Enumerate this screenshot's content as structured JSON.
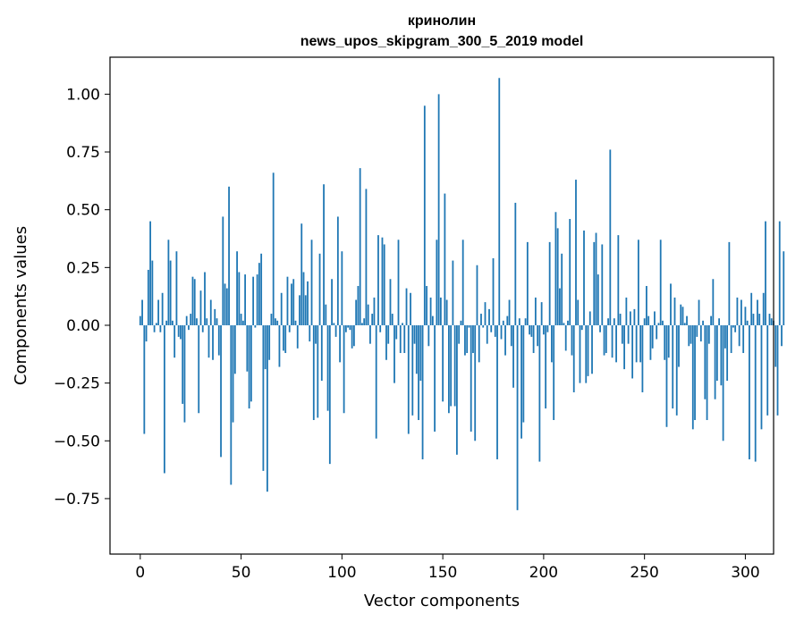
{
  "chart_data": {
    "type": "bar",
    "title": "кринолин",
    "subtitle": "news_upos_skipgram_300_5_2019 model",
    "xlabel": "Vector components",
    "ylabel": "Components values",
    "xlim": [
      -15,
      314
    ],
    "ylim": [
      -0.99,
      1.16
    ],
    "x_ticks": [
      0,
      50,
      100,
      150,
      200,
      250,
      300
    ],
    "x_tick_labels": [
      "0",
      "50",
      "100",
      "150",
      "200",
      "250",
      "300"
    ],
    "y_ticks": [
      1.0,
      0.75,
      0.5,
      0.25,
      0.0,
      -0.25,
      -0.5,
      -0.75
    ],
    "y_tick_labels": [
      "1.00",
      "0.75",
      "0.50",
      "0.25",
      "0.00",
      "−0.25",
      "−0.50",
      "−0.75"
    ],
    "bar_color": "#1f77b4",
    "grid": false,
    "values": [
      0.04,
      0.11,
      -0.47,
      -0.07,
      0.24,
      0.45,
      0.28,
      -0.03,
      0.01,
      0.11,
      -0.03,
      0.14,
      -0.64,
      0.02,
      0.37,
      0.28,
      0.02,
      -0.14,
      0.32,
      -0.05,
      -0.06,
      -0.34,
      -0.42,
      0.04,
      -0.02,
      0.05,
      0.21,
      0.2,
      0.03,
      -0.38,
      0.15,
      -0.03,
      0.23,
      0.03,
      -0.14,
      0.11,
      -0.15,
      0.07,
      0.03,
      -0.13,
      -0.57,
      0.47,
      0.18,
      0.16,
      0.6,
      -0.69,
      -0.42,
      -0.21,
      0.32,
      0.23,
      0.05,
      0.02,
      0.22,
      -0.2,
      -0.36,
      -0.33,
      0.21,
      -0.01,
      0.22,
      0.27,
      0.31,
      -0.63,
      -0.19,
      -0.72,
      -0.15,
      0.05,
      0.66,
      0.03,
      0.02,
      -0.18,
      0.14,
      -0.11,
      -0.12,
      0.21,
      -0.03,
      0.18,
      0.2,
      0.02,
      -0.1,
      0.13,
      0.44,
      0.23,
      0.13,
      0.19,
      -0.07,
      0.37,
      -0.41,
      -0.08,
      -0.4,
      0.31,
      -0.24,
      0.61,
      0.09,
      -0.37,
      -0.6,
      0.2,
      0.01,
      -0.05,
      0.47,
      -0.16,
      0.32,
      -0.38,
      -0.03,
      -0.01,
      -0.02,
      -0.1,
      -0.09,
      0.11,
      0.17,
      0.68,
      0.01,
      0.03,
      0.59,
      0.09,
      -0.08,
      0.05,
      0.12,
      -0.49,
      0.39,
      -0.03,
      0.38,
      0.35,
      -0.15,
      -0.08,
      0.2,
      0.05,
      -0.25,
      -0.06,
      0.37,
      -0.12,
      0.01,
      -0.12,
      0.16,
      -0.47,
      0.14,
      -0.39,
      -0.08,
      -0.21,
      -0.41,
      -0.24,
      -0.58,
      0.95,
      0.17,
      -0.09,
      0.12,
      0.04,
      -0.46,
      0.37,
      1.0,
      0.12,
      -0.33,
      0.57,
      0.11,
      -0.38,
      -0.35,
      0.28,
      -0.35,
      -0.56,
      -0.08,
      0.02,
      0.37,
      -0.13,
      -0.12,
      -0.01,
      -0.46,
      -0.12,
      -0.5,
      0.26,
      -0.16,
      0.05,
      -0.01,
      0.1,
      -0.08,
      0.07,
      -0.03,
      0.29,
      -0.05,
      -0.58,
      1.07,
      -0.06,
      0.02,
      -0.13,
      0.04,
      0.11,
      -0.09,
      -0.27,
      0.53,
      -0.8,
      0.03,
      -0.49,
      -0.42,
      0.03,
      0.36,
      -0.04,
      -0.05,
      -0.12,
      0.12,
      -0.09,
      -0.59,
      0.1,
      -0.04,
      -0.36,
      -0.03,
      0.36,
      -0.16,
      -0.41,
      0.49,
      0.42,
      0.16,
      0.31,
      0.01,
      -0.11,
      0.02,
      0.46,
      -0.13,
      -0.29,
      0.63,
      0.11,
      -0.25,
      -0.02,
      0.41,
      -0.25,
      -0.22,
      0.06,
      -0.21,
      0.36,
      0.4,
      0.22,
      -0.03,
      0.35,
      -0.13,
      -0.12,
      0.03,
      0.76,
      -0.14,
      0.03,
      -0.16,
      0.39,
      0.05,
      -0.08,
      -0.19,
      0.12,
      -0.08,
      0.06,
      -0.23,
      0.07,
      -0.16,
      0.37,
      -0.16,
      -0.29,
      0.03,
      0.17,
      0.04,
      -0.15,
      -0.1,
      0.06,
      -0.06,
      0.01,
      0.37,
      0.02,
      -0.15,
      -0.44,
      -0.14,
      0.18,
      -0.36,
      0.12,
      -0.39,
      -0.18,
      0.09,
      0.08,
      0.01,
      0.04,
      -0.09,
      -0.08,
      -0.45,
      -0.41,
      -0.05,
      0.11,
      -0.07,
      0.02,
      -0.32,
      -0.41,
      -0.08,
      0.04,
      0.2,
      -0.32,
      -0.24,
      0.03,
      -0.26,
      -0.5,
      -0.1,
      -0.24,
      0.36,
      -0.12,
      -0.01,
      -0.03,
      0.12,
      -0.09,
      0.11,
      -0.12,
      0.08,
      0.02,
      -0.58,
      0.14,
      0.05,
      -0.59,
      0.11,
      0.05,
      -0.45,
      0.14,
      0.45,
      -0.39,
      0.05,
      0.03,
      0.02,
      -0.18,
      -0.39,
      0.45,
      -0.09,
      0.32
    ]
  }
}
